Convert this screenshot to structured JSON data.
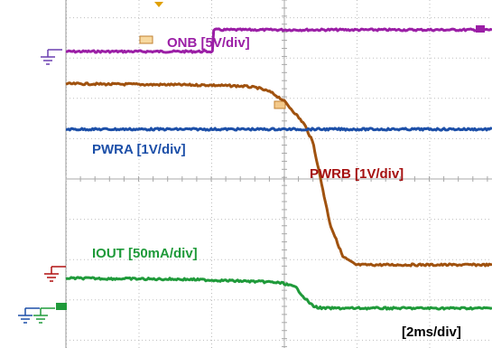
{
  "chart_data": {
    "type": "line",
    "time_per_div": "[2ms/div]",
    "grid": true,
    "x": [
      0,
      0.5,
      1,
      1.5,
      2,
      2.5,
      3,
      3.3,
      3.6,
      3.9,
      4.2,
      4.5,
      4.8,
      5.1,
      5.4,
      5.6,
      5.8,
      6,
      6.2,
      6.5,
      6.8,
      7.5,
      8,
      9,
      10
    ],
    "series": [
      {
        "name": "ONB [5V/div]",
        "color": "#9b1fa6",
        "values": [
          0,
          0,
          0,
          0,
          0,
          0,
          0,
          0,
          1,
          1,
          1,
          1,
          1,
          1,
          1,
          1,
          1,
          1,
          1,
          1,
          1,
          1,
          1,
          1,
          1
        ]
      },
      {
        "name": "PWRB [1V/div]",
        "color": "#a0520f",
        "values": [
          4.45,
          4.45,
          4.44,
          4.44,
          4.43,
          4.43,
          4.42,
          4.42,
          4.41,
          4.4,
          4.39,
          4.35,
          4.25,
          4.05,
          3.7,
          3.45,
          3.0,
          2.0,
          1.0,
          0.2,
          0.0,
          0.0,
          0.0,
          0.0,
          0.0
        ]
      },
      {
        "name": "PWRA [1V/div]",
        "color": "#1c4fa8",
        "values": [
          3.0,
          3.0,
          3.0,
          3.0,
          3.0,
          3.0,
          3.0,
          3.0,
          3.0,
          3.0,
          3.0,
          3.0,
          3.0,
          3.0,
          3.0,
          3.0,
          3.0,
          3.0,
          3.0,
          3.0,
          3.0,
          3.0,
          3.0,
          3.0,
          3.0
        ]
      },
      {
        "name": "IOUT [50mA/div]",
        "color": "#1f9a3a",
        "values": [
          0.72,
          0.72,
          0.71,
          0.71,
          0.7,
          0.7,
          0.69,
          0.68,
          0.67,
          0.66,
          0.65,
          0.64,
          0.63,
          0.6,
          0.5,
          0.25,
          0.05,
          0.0,
          0.0,
          0.0,
          0.0,
          0.0,
          0.0,
          0.0,
          0.0
        ]
      }
    ],
    "labels": {
      "onb": "ONB [5V/div]",
      "pwra": "PWRA [1V/div]",
      "pwrb": "PWRB [1V/div]",
      "iout": "IOUT [50mA/div]"
    }
  },
  "colors": {
    "grid": "#bdbdbd",
    "background": "#ffffff"
  }
}
